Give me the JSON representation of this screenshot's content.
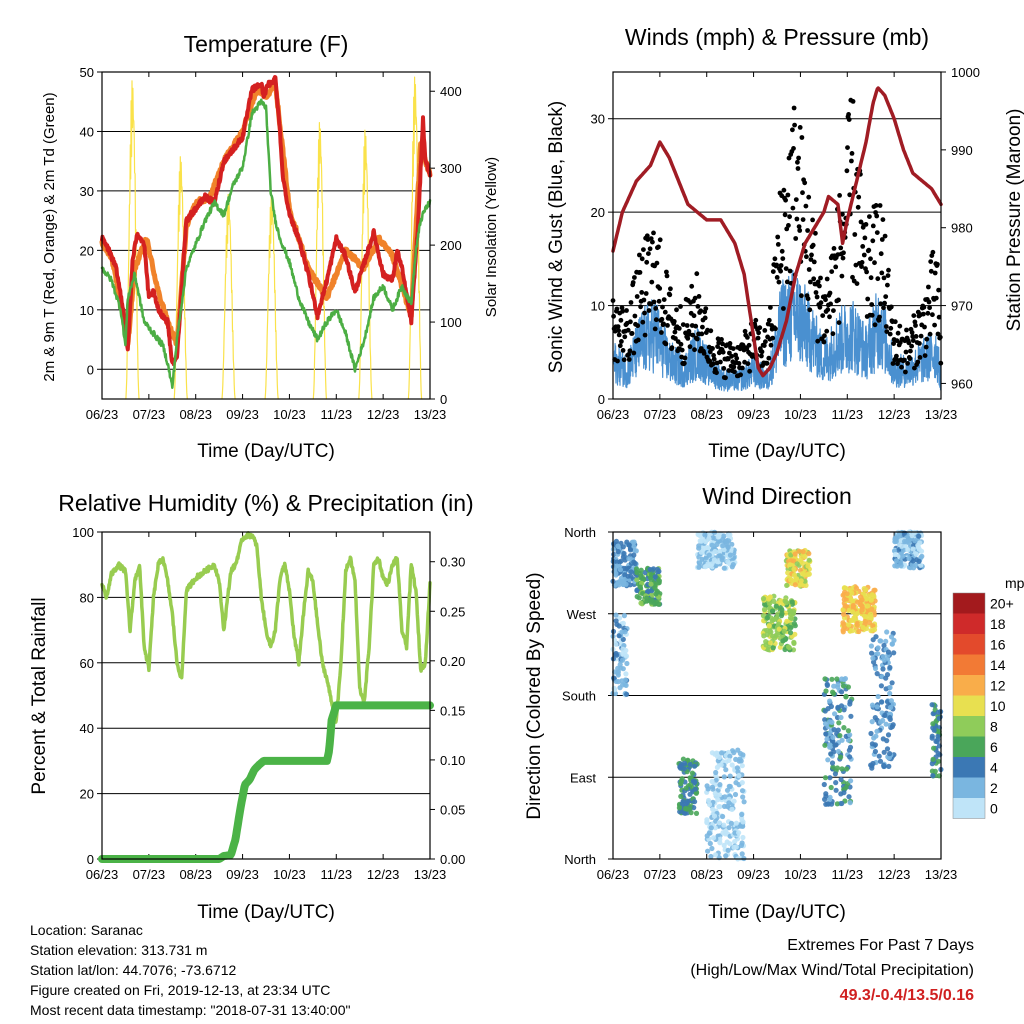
{
  "chart_data": [
    {
      "type": "line",
      "title": "Temperature (F)",
      "xlabel": "Time (Day/UTC)",
      "ylabel": "2m & 9m T (Red, Orange) & 2m Td (Green)",
      "y2label": "Solar Insolation (Yellow)",
      "x_ticks": [
        "06/23",
        "07/23",
        "08/23",
        "09/23",
        "10/23",
        "11/23",
        "12/23",
        "13/23"
      ],
      "ylim": [
        -5,
        50
      ],
      "y_ticks": [
        0,
        10,
        20,
        30,
        40,
        50
      ],
      "y2lim": [
        0,
        425
      ],
      "y2_ticks": [
        0,
        100,
        200,
        300,
        400
      ],
      "series": [
        {
          "name": "2m T",
          "color": "#d42020",
          "x": [
            6.0,
            6.15,
            6.3,
            6.5,
            6.55,
            6.65,
            6.75,
            6.9,
            7.0,
            7.1,
            7.2,
            7.4,
            7.5,
            7.6,
            7.8,
            8.0,
            8.2,
            8.4,
            8.6,
            8.8,
            9.0,
            9.2,
            9.4,
            9.45,
            9.55,
            9.6,
            9.7,
            9.8,
            9.85,
            10.0,
            10.2,
            10.4,
            10.6,
            10.8,
            11.0,
            11.2,
            11.4,
            11.6,
            11.8,
            12.0,
            12.2,
            12.3,
            12.4,
            12.6,
            12.75,
            12.85,
            12.9,
            13.0
          ],
          "y": [
            22,
            20,
            17,
            8,
            3,
            18,
            23,
            21,
            12,
            13,
            10,
            8,
            1,
            2,
            25,
            27,
            29,
            28,
            35,
            37,
            39,
            47,
            48,
            46,
            48,
            48,
            49,
            40,
            33,
            26,
            22,
            16,
            9,
            15,
            22,
            19,
            13,
            18,
            23,
            16,
            15,
            20,
            17,
            8,
            25,
            42,
            35,
            33
          ]
        },
        {
          "name": "9m T",
          "color": "#f0822a",
          "x": [
            6.0,
            6.2,
            6.45,
            6.55,
            6.7,
            6.95,
            7.2,
            7.4,
            7.5,
            7.6,
            7.8,
            8.0,
            8.3,
            8.6,
            9.0,
            9.3,
            9.5,
            9.7,
            9.8,
            10.0,
            10.4,
            10.8,
            11.2,
            11.6,
            11.9,
            12.2,
            12.6,
            12.8,
            12.9,
            13.0
          ],
          "y": [
            21,
            19,
            9,
            4,
            17,
            22,
            13,
            8,
            6,
            4,
            24,
            28,
            29,
            35,
            40,
            47,
            46,
            48,
            41,
            27,
            17,
            12,
            20,
            17,
            22,
            19,
            9,
            38,
            35,
            33
          ]
        },
        {
          "name": "2m Td",
          "color": "#4cae44",
          "x": [
            6.0,
            6.2,
            6.4,
            6.5,
            6.55,
            6.7,
            6.9,
            7.1,
            7.3,
            7.4,
            7.5,
            7.6,
            7.8,
            8.0,
            8.2,
            8.4,
            8.6,
            8.8,
            9.0,
            9.2,
            9.4,
            9.5,
            9.6,
            9.7,
            9.8,
            10.0,
            10.2,
            10.4,
            10.6,
            10.8,
            11.0,
            11.2,
            11.4,
            11.6,
            11.8,
            12.0,
            12.2,
            12.4,
            12.6,
            12.7,
            12.8,
            12.9,
            13.0
          ],
          "y": [
            17,
            15,
            10,
            4,
            12,
            16,
            8,
            6,
            4,
            1,
            -3,
            5,
            17,
            21,
            25,
            28,
            26,
            31,
            34,
            43,
            45,
            44,
            30,
            25,
            22,
            18,
            12,
            8,
            5,
            8,
            10,
            6,
            0,
            5,
            12,
            14,
            10,
            14,
            11,
            20,
            25,
            27,
            28
          ]
        },
        {
          "name": "Solar Insolation",
          "color": "#fae24a",
          "axis": "right",
          "peaks_x": [
            6.65,
            7.68,
            8.7,
            9.62,
            10.65,
            11.62,
            12.68
          ],
          "peaks_y": [
            420,
            320,
            270,
            270,
            365,
            355,
            425
          ]
        }
      ]
    },
    {
      "type": "scatter",
      "title": "Winds (mph) & Pressure (mb)",
      "xlabel": "Time (Day/UTC)",
      "ylabel": "Sonic Wind & Gust (Blue, Black)",
      "y2label": "Station Pressure (Maroon)",
      "x_ticks": [
        "06/23",
        "07/23",
        "08/23",
        "09/23",
        "10/23",
        "11/23",
        "12/23",
        "13/23"
      ],
      "ylim": [
        0,
        35
      ],
      "y_ticks": [
        0,
        10,
        20,
        30
      ],
      "y2lim": [
        958,
        1000
      ],
      "y2_ticks": [
        960,
        970,
        980,
        990,
        1000
      ],
      "series": [
        {
          "name": "Wind",
          "color": "#4a90d0",
          "x": [
            6.0,
            6.3,
            6.6,
            6.9,
            7.2,
            7.5,
            7.8,
            8.1,
            8.4,
            8.7,
            9.0,
            9.3,
            9.6,
            9.9,
            10.2,
            10.5,
            10.8,
            11.1,
            11.4,
            11.7,
            12.0,
            12.3,
            12.6,
            12.9,
            13.0
          ],
          "y": [
            4,
            3,
            6,
            7,
            4,
            3,
            5,
            3,
            2,
            2,
            3,
            2,
            8,
            9,
            7,
            4,
            6,
            7,
            5,
            8,
            3,
            3,
            4,
            5,
            2
          ]
        },
        {
          "name": "Gust",
          "color": "#000000",
          "x": [
            6.0,
            6.3,
            6.6,
            6.9,
            7.2,
            7.5,
            7.8,
            8.1,
            8.4,
            8.7,
            9.0,
            9.3,
            9.6,
            9.9,
            10.2,
            10.5,
            10.8,
            11.1,
            11.4,
            11.7,
            12.0,
            12.3,
            12.6,
            12.9,
            13.0
          ],
          "y": [
            9,
            8,
            13,
            16,
            10,
            8,
            11,
            6,
            5,
            5,
            7,
            6,
            20,
            27,
            18,
            10,
            17,
            27,
            15,
            18,
            7,
            6,
            9,
            14,
            5
          ]
        },
        {
          "name": "Pressure",
          "color": "#a01c24",
          "axis": "right",
          "x": [
            6.0,
            6.2,
            6.5,
            6.8,
            7.0,
            7.2,
            7.4,
            7.6,
            7.8,
            8.0,
            8.3,
            8.6,
            8.8,
            9.0,
            9.1,
            9.2,
            9.35,
            9.5,
            9.7,
            9.9,
            10.1,
            10.3,
            10.5,
            10.6,
            10.8,
            10.9,
            11.0,
            11.2,
            11.4,
            11.55,
            11.65,
            11.8,
            12.0,
            12.2,
            12.4,
            12.6,
            12.8,
            12.9,
            13.0
          ],
          "y": [
            977,
            982,
            986,
            988,
            991,
            989,
            986,
            983,
            982,
            981,
            981,
            978,
            974,
            966,
            962,
            961,
            962,
            964,
            968,
            974,
            978,
            980,
            982,
            984,
            983,
            978,
            981,
            986,
            991,
            996,
            998,
            997,
            994,
            990,
            987,
            986,
            985,
            984,
            983
          ]
        }
      ]
    },
    {
      "type": "line",
      "title": "Relative Humidity (%) & Precipitation (in)",
      "xlabel": "Time (Day/UTC)",
      "ylabel": "Percent & Total Rainfall",
      "x_ticks": [
        "06/23",
        "07/23",
        "08/23",
        "09/23",
        "10/23",
        "11/23",
        "12/23",
        "13/23"
      ],
      "ylim": [
        0,
        100
      ],
      "y_ticks": [
        0,
        20,
        40,
        60,
        80,
        100
      ],
      "y2lim": [
        0,
        0.33
      ],
      "y2_ticks": [
        "0.00",
        "0.05",
        "0.10",
        "0.15",
        "0.20",
        "0.25",
        "0.30"
      ],
      "series": [
        {
          "name": "Relative Humidity",
          "color": "#98cc50",
          "x": [
            6.0,
            6.1,
            6.2,
            6.35,
            6.5,
            6.6,
            6.7,
            6.8,
            6.9,
            7.0,
            7.1,
            7.2,
            7.3,
            7.4,
            7.5,
            7.6,
            7.7,
            7.8,
            7.9,
            8.0,
            8.2,
            8.4,
            8.5,
            8.6,
            8.75,
            8.85,
            9.0,
            9.1,
            9.2,
            9.3,
            9.4,
            9.5,
            9.6,
            9.7,
            9.8,
            9.9,
            10.0,
            10.1,
            10.2,
            10.3,
            10.4,
            10.5,
            10.6,
            10.7,
            10.8,
            10.9,
            11.0,
            11.1,
            11.2,
            11.3,
            11.4,
            11.5,
            11.6,
            11.7,
            11.8,
            11.9,
            12.0,
            12.1,
            12.2,
            12.3,
            12.4,
            12.5,
            12.6,
            12.7,
            12.8,
            12.9,
            13.0
          ],
          "y": [
            84,
            80,
            87,
            90,
            88,
            70,
            85,
            90,
            65,
            58,
            80,
            90,
            92,
            85,
            75,
            60,
            55,
            82,
            84,
            86,
            88,
            90,
            85,
            70,
            88,
            90,
            98,
            99,
            99,
            96,
            80,
            70,
            65,
            70,
            86,
            90,
            82,
            68,
            60,
            75,
            88,
            85,
            72,
            60,
            55,
            48,
            42,
            60,
            88,
            92,
            85,
            52,
            48,
            65,
            90,
            92,
            86,
            84,
            90,
            92,
            70,
            65,
            90,
            82,
            58,
            60,
            84
          ]
        },
        {
          "name": "Total Rainfall",
          "color": "#4bb347",
          "axis": "right",
          "x": [
            6.0,
            8.5,
            8.6,
            8.75,
            8.85,
            8.95,
            9.05,
            9.15,
            9.25,
            9.35,
            9.45,
            10.8,
            10.85,
            10.9,
            11.0,
            13.0
          ],
          "y": [
            0.0,
            0.0,
            0.003,
            0.004,
            0.02,
            0.05,
            0.075,
            0.08,
            0.09,
            0.095,
            0.099,
            0.099,
            0.11,
            0.14,
            0.155,
            0.155
          ]
        }
      ]
    },
    {
      "type": "scatter",
      "title": "Wind Direction",
      "xlabel": "Time (Day/UTC)",
      "ylabel": "Direction (Colored By Speed)",
      "x_ticks": [
        "06/23",
        "07/23",
        "08/23",
        "09/23",
        "10/23",
        "11/23",
        "12/23",
        "13/23"
      ],
      "y_ticks": [
        "North",
        "East",
        "South",
        "West",
        "North"
      ],
      "colorbar": {
        "unit": "mph",
        "labels": [
          "20+",
          "18",
          "16",
          "14",
          "12",
          "10",
          "8",
          "6",
          "4",
          "2",
          "0"
        ],
        "colors": [
          "#a31a1d",
          "#cf2a2a",
          "#e34a2c",
          "#f27a35",
          "#f9ad4a",
          "#e8e050",
          "#8fcc5a",
          "#4aa65a",
          "#3b78b4",
          "#7ab6e0",
          "#bfe4f8"
        ]
      },
      "clusters": [
        {
          "x": [
            6.0,
            6.5
          ],
          "dir": [
            300,
            350
          ],
          "speed": 3
        },
        {
          "x": [
            6.5,
            7.0
          ],
          "dir": [
            280,
            320
          ],
          "speed": 6
        },
        {
          "x": [
            6.0,
            6.3
          ],
          "dir": [
            180,
            270
          ],
          "speed": 2
        },
        {
          "x": [
            7.4,
            7.8
          ],
          "dir": [
            50,
            110
          ],
          "speed": 5
        },
        {
          "x": [
            7.8,
            8.6
          ],
          "dir": [
            320,
            360
          ],
          "speed": 1
        },
        {
          "x": [
            8.0,
            8.8
          ],
          "dir": [
            0,
            120
          ],
          "speed": 1
        },
        {
          "x": [
            9.2,
            9.9
          ],
          "dir": [
            230,
            290
          ],
          "speed": 8
        },
        {
          "x": [
            9.7,
            10.2
          ],
          "dir": [
            300,
            340
          ],
          "speed": 10
        },
        {
          "x": [
            10.5,
            11.1
          ],
          "dir": [
            60,
            200
          ],
          "speed": 4
        },
        {
          "x": [
            10.9,
            11.6
          ],
          "dir": [
            250,
            300
          ],
          "speed": 11
        },
        {
          "x": [
            11.5,
            12.0
          ],
          "dir": [
            100,
            250
          ],
          "speed": 3
        },
        {
          "x": [
            12.0,
            12.6
          ],
          "dir": [
            320,
            360
          ],
          "speed": 2
        },
        {
          "x": [
            12.8,
            13.0
          ],
          "dir": [
            90,
            170
          ],
          "speed": 5
        }
      ]
    }
  ],
  "info": {
    "location": "Location: Saranac",
    "elevation": "Station elevation: 313.731 m",
    "latlon": "Station lat/lon: 44.7076; -73.6712",
    "created": "Figure created on Fri, 2019-12-13, at 23:34 UTC",
    "recent": "Most recent data timestamp: \"2018-07-31 13:40:00\""
  },
  "extremes": {
    "title": "Extremes For Past 7 Days",
    "subtitle": "(High/Low/Max Wind/Total Precipitation)",
    "values": "49.3/-0.4/13.5/0.16"
  }
}
